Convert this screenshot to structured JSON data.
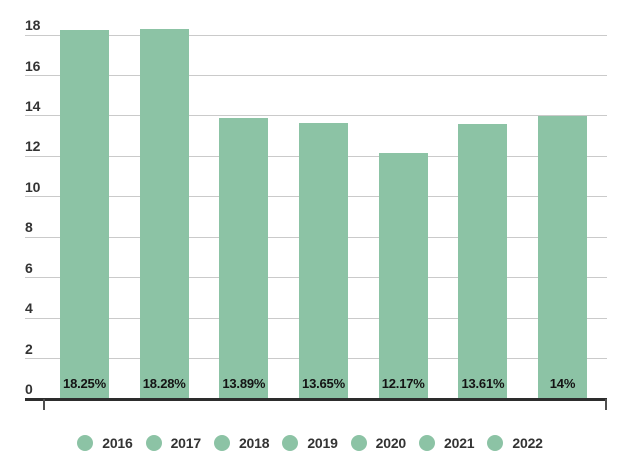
{
  "chart_data": {
    "type": "bar",
    "title": "",
    "xlabel": "",
    "ylabel": "",
    "categories": [
      "2016",
      "2017",
      "2018",
      "2019",
      "2020",
      "2021",
      "2022"
    ],
    "values": [
      18.25,
      18.28,
      13.89,
      13.65,
      12.17,
      13.61,
      14
    ],
    "bar_labels": [
      "18.25%",
      "18.28%",
      "13.89%",
      "13.65%",
      "12.17%",
      "13.61%",
      "14%"
    ],
    "ylim": [
      0,
      18
    ],
    "ytick_step": 2,
    "ytick_labels": [
      "0",
      "2",
      "4",
      "6",
      "8",
      "10",
      "12",
      "14",
      "16",
      "18"
    ],
    "grid": true,
    "legend_position": "bottom",
    "colors": {
      "bar": "#8cc3a5",
      "legend_marker": "#8cc3a5",
      "gridline": "#cacaca",
      "axis_line": "#2d2d2d",
      "axis_end_tick": "#4f4f4f",
      "y_label_text": "#333333",
      "bar_label_text": "#141414",
      "legend_text": "#333333",
      "background": "#ffffff"
    }
  }
}
